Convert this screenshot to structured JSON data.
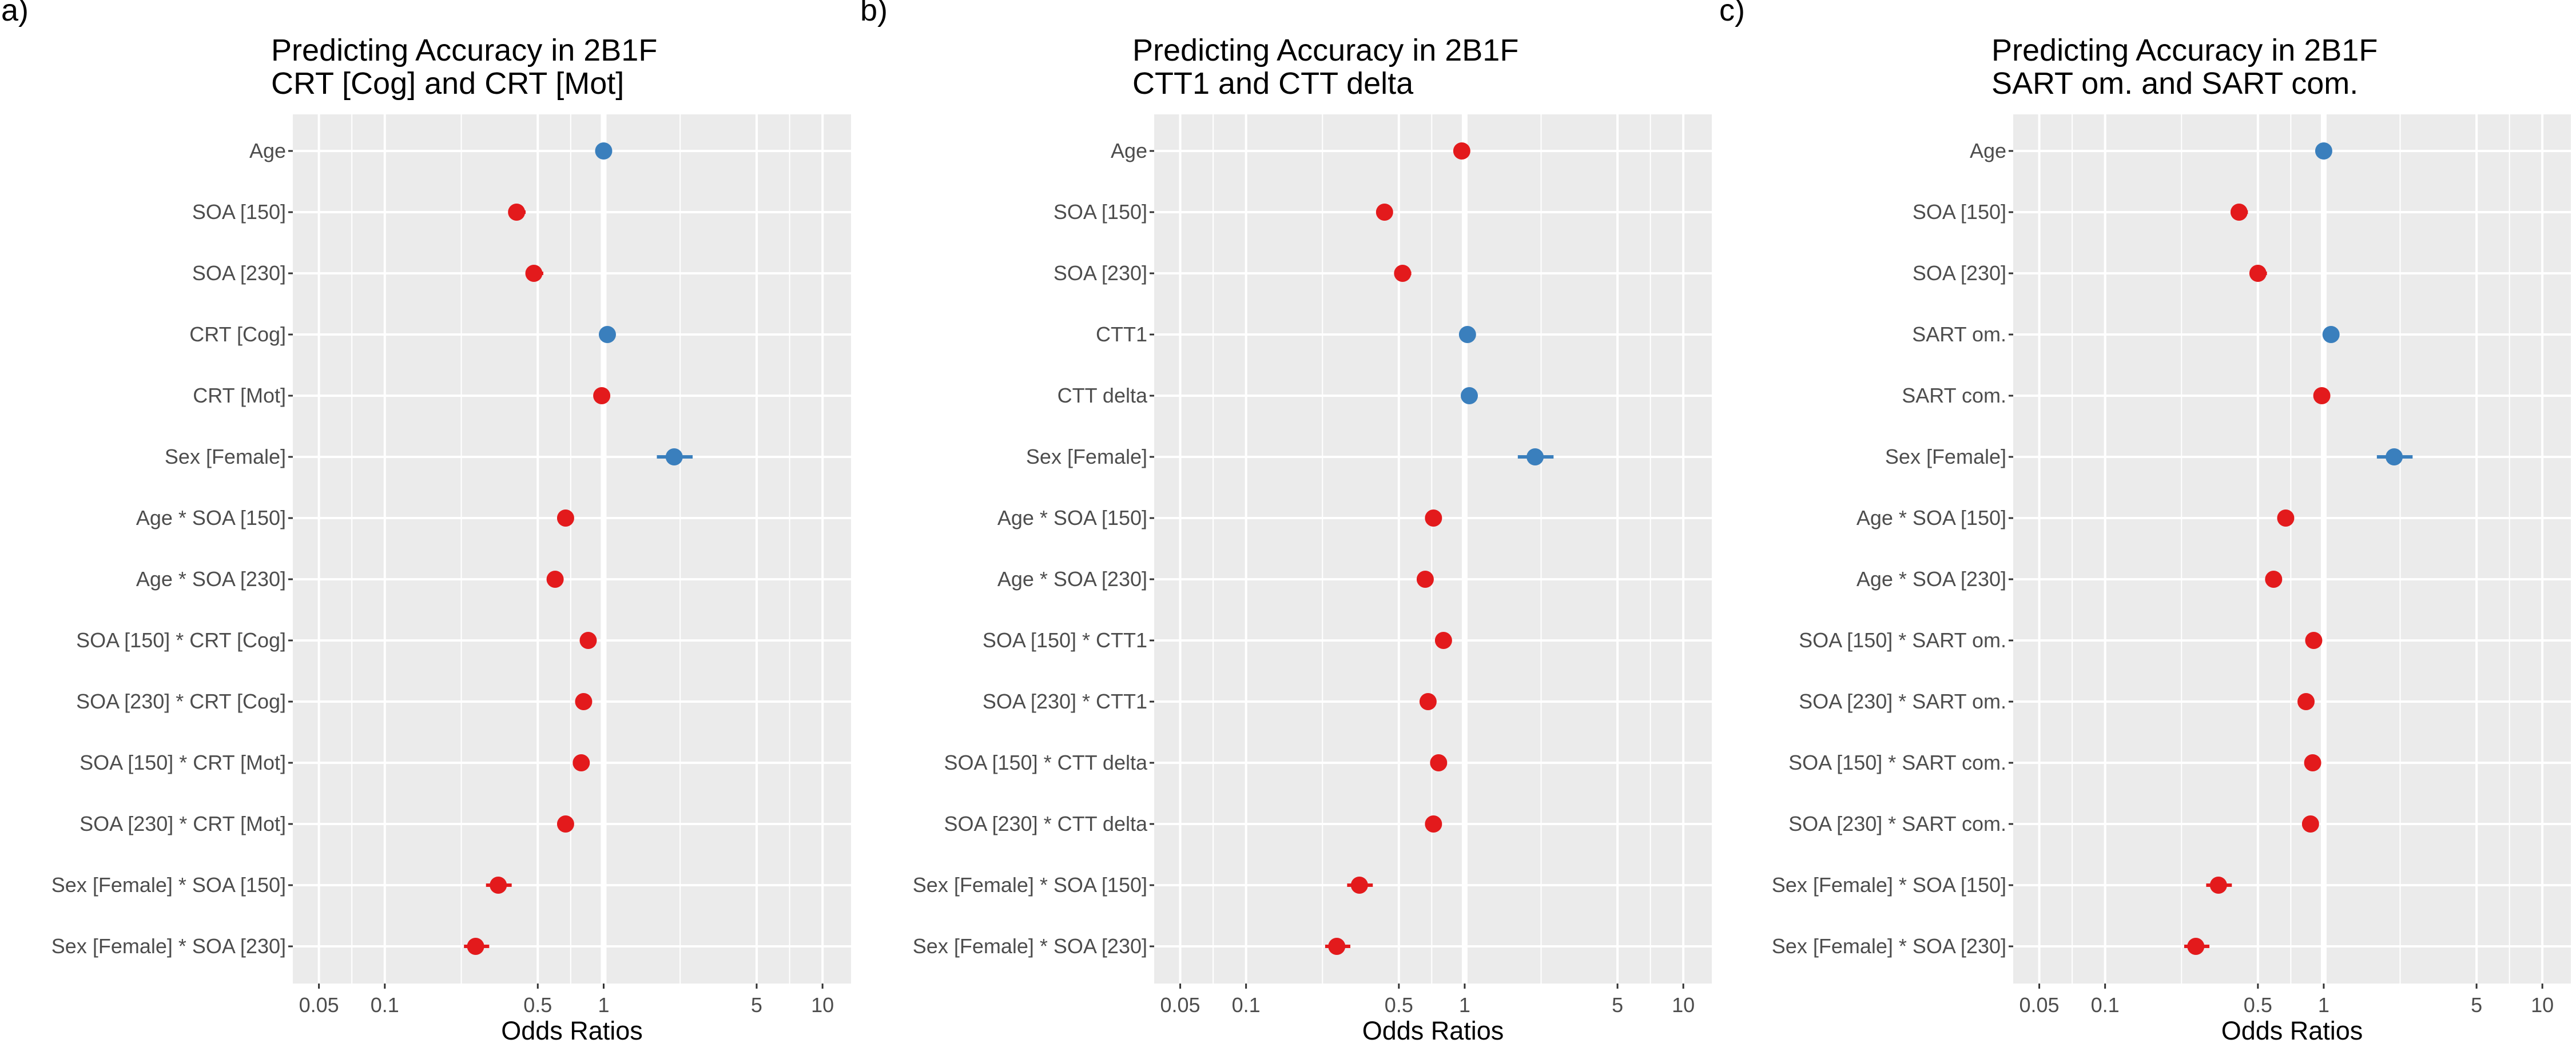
{
  "figure": {
    "colors": {
      "positive": "#3a7fbd",
      "negative": "#e31a1c",
      "panel_bg": "#ebebeb",
      "grid": "#ffffff",
      "tick_text": "#4d4d4d"
    }
  },
  "chart_data": [
    {
      "type": "forest",
      "panel_label": "a)",
      "title_line1": "Predicting Accuracy in 2B1F",
      "title_line2": "CRT [Cog] and CRT [Mot]",
      "xlabel": "Odds Ratios",
      "xscale": "log",
      "xlim": [
        0.038,
        13.5
      ],
      "xticks": [
        0.05,
        0.1,
        0.5,
        1,
        5,
        10
      ],
      "xtick_labels": [
        "0.05",
        "0.1",
        "0.5",
        "1",
        "5",
        "10"
      ],
      "reference_line": 1,
      "grid": true,
      "rows": [
        {
          "label": "Age",
          "or": 1.0,
          "lo": 0.94,
          "hi": 1.07
        },
        {
          "label": "SOA [150]",
          "or": 0.4,
          "lo": 0.37,
          "hi": 0.44
        },
        {
          "label": "SOA [230]",
          "or": 0.48,
          "lo": 0.44,
          "hi": 0.53
        },
        {
          "label": "CRT [Cog]",
          "or": 1.04,
          "lo": 0.98,
          "hi": 1.1
        },
        {
          "label": "CRT [Mot]",
          "or": 0.98,
          "lo": 0.92,
          "hi": 1.04
        },
        {
          "label": "Sex [Female]",
          "or": 2.1,
          "lo": 1.75,
          "hi": 2.55
        },
        {
          "label": "Age * SOA [150]",
          "or": 0.67,
          "lo": 0.65,
          "hi": 0.69
        },
        {
          "label": "Age * SOA [230]",
          "or": 0.6,
          "lo": 0.58,
          "hi": 0.62
        },
        {
          "label": "SOA [150] *  CRT [Cog]",
          "or": 0.85,
          "lo": 0.82,
          "hi": 0.88
        },
        {
          "label": "SOA [230] *  CRT [Cog]",
          "or": 0.81,
          "lo": 0.78,
          "hi": 0.84
        },
        {
          "label": "SOA [150] *  CRT [Mot]",
          "or": 0.79,
          "lo": 0.76,
          "hi": 0.82
        },
        {
          "label": "SOA [230] *  CRT [Mot]",
          "or": 0.67,
          "lo": 0.64,
          "hi": 0.7
        },
        {
          "label": "Sex [Female] * SOA [150]",
          "or": 0.33,
          "lo": 0.29,
          "hi": 0.38
        },
        {
          "label": "Sex [Female] * SOA [230]",
          "or": 0.26,
          "lo": 0.23,
          "hi": 0.3
        }
      ]
    },
    {
      "type": "forest",
      "panel_label": "b)",
      "title_line1": "Predicting Accuracy in 2B1F",
      "title_line2": "CTT1 and CTT delta",
      "xlabel": "Odds Ratios",
      "xscale": "log",
      "xlim": [
        0.038,
        13.5
      ],
      "xticks": [
        0.05,
        0.1,
        0.5,
        1,
        5,
        10
      ],
      "xtick_labels": [
        "0.05",
        "0.1",
        "0.5",
        "1",
        "5",
        "10"
      ],
      "reference_line": 1,
      "grid": true,
      "rows": [
        {
          "label": "Age",
          "or": 0.97,
          "lo": 0.91,
          "hi": 1.04
        },
        {
          "label": "SOA [150]",
          "or": 0.43,
          "lo": 0.4,
          "hi": 0.47
        },
        {
          "label": "SOA [230]",
          "or": 0.52,
          "lo": 0.48,
          "hi": 0.57
        },
        {
          "label": "CTT1",
          "or": 1.03,
          "lo": 0.97,
          "hi": 1.09
        },
        {
          "label": "CTT delta",
          "or": 1.05,
          "lo": 1.0,
          "hi": 1.11
        },
        {
          "label": "Sex [Female]",
          "or": 2.1,
          "lo": 1.75,
          "hi": 2.55
        },
        {
          "label": "Age * SOA [150]",
          "or": 0.72,
          "lo": 0.7,
          "hi": 0.74
        },
        {
          "label": "Age * SOA [230]",
          "or": 0.66,
          "lo": 0.64,
          "hi": 0.68
        },
        {
          "label": "SOA [150] *  CTT1",
          "or": 0.8,
          "lo": 0.77,
          "hi": 0.83
        },
        {
          "label": "SOA [230] *  CTT1",
          "or": 0.68,
          "lo": 0.66,
          "hi": 0.7
        },
        {
          "label": "SOA [150] *  CTT delta",
          "or": 0.76,
          "lo": 0.74,
          "hi": 0.78
        },
        {
          "label": "SOA [230] *  CTT delta",
          "or": 0.72,
          "lo": 0.7,
          "hi": 0.74
        },
        {
          "label": "Sex [Female] * SOA [150]",
          "or": 0.33,
          "lo": 0.29,
          "hi": 0.38
        },
        {
          "label": "Sex [Female] * SOA [230]",
          "or": 0.26,
          "lo": 0.23,
          "hi": 0.3
        }
      ]
    },
    {
      "type": "forest",
      "panel_label": "c)",
      "title_line1": "Predicting Accuracy in 2B1F",
      "title_line2": "SART om. and SART com.",
      "xlabel": "Odds Ratios",
      "xscale": "log",
      "xlim": [
        0.038,
        13.5
      ],
      "xticks": [
        0.05,
        0.1,
        0.5,
        1,
        5,
        10
      ],
      "xtick_labels": [
        "0.05",
        "0.1",
        "0.5",
        "1",
        "5",
        "10"
      ],
      "reference_line": 1,
      "grid": true,
      "rows": [
        {
          "label": "Age",
          "or": 1.0,
          "lo": 0.94,
          "hi": 1.07
        },
        {
          "label": "SOA [150]",
          "or": 0.41,
          "lo": 0.38,
          "hi": 0.45
        },
        {
          "label": "SOA [230]",
          "or": 0.5,
          "lo": 0.46,
          "hi": 0.55
        },
        {
          "label": "SART om.",
          "or": 1.08,
          "lo": 1.01,
          "hi": 1.16
        },
        {
          "label": "SART com.",
          "or": 0.98,
          "lo": 0.92,
          "hi": 1.05
        },
        {
          "label": "Sex [Female]",
          "or": 2.1,
          "lo": 1.75,
          "hi": 2.55
        },
        {
          "label": "Age * SOA [150]",
          "or": 0.67,
          "lo": 0.65,
          "hi": 0.69
        },
        {
          "label": "Age * SOA [230]",
          "or": 0.59,
          "lo": 0.57,
          "hi": 0.61
        },
        {
          "label": "SOA [150] *  SART om.",
          "or": 0.9,
          "lo": 0.86,
          "hi": 0.94
        },
        {
          "label": "SOA [230] *  SART om.",
          "or": 0.83,
          "lo": 0.79,
          "hi": 0.87
        },
        {
          "label": "SOA [150] *  SART com.",
          "or": 0.89,
          "lo": 0.86,
          "hi": 0.92
        },
        {
          "label": "SOA [230] *  SART com.",
          "or": 0.87,
          "lo": 0.84,
          "hi": 0.9
        },
        {
          "label": "Sex [Female] * SOA [150]",
          "or": 0.33,
          "lo": 0.29,
          "hi": 0.38
        },
        {
          "label": "Sex [Female] * SOA [230]",
          "or": 0.26,
          "lo": 0.23,
          "hi": 0.3
        }
      ]
    }
  ]
}
